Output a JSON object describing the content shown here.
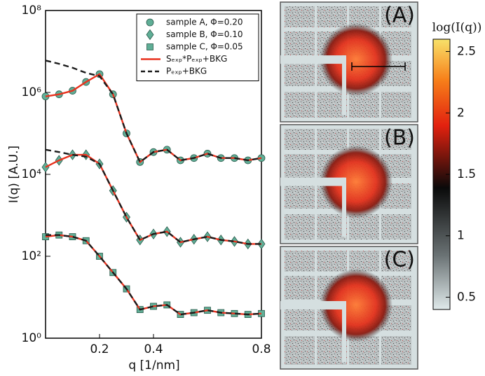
{
  "chart_data": {
    "type": "line",
    "xlabel": "q [1/nm]",
    "ylabel": "I(q) [A.U.]",
    "xlim": [
      0,
      0.8
    ],
    "xticks": [
      0.2,
      0.4,
      0.8
    ],
    "ylim": [
      1,
      100000000
    ],
    "log_y": true,
    "yticks": [
      {
        "value": 1,
        "label": "10⁰"
      },
      {
        "value": 100,
        "label": "10²"
      },
      {
        "value": 10000,
        "label": "10⁴"
      },
      {
        "value": 1000000,
        "label": "10⁶"
      },
      {
        "value": 100000000,
        "label": "10⁸"
      }
    ],
    "legend": "upper right",
    "x": [
      0,
      0.05,
      0.1,
      0.15,
      0.2,
      0.25,
      0.3,
      0.35,
      0.4,
      0.45,
      0.5,
      0.55,
      0.6,
      0.65,
      0.7,
      0.75,
      0.8
    ],
    "series": [
      {
        "name": "sample A, Φ=0.20",
        "color": "#5fae96",
        "marker": "circle",
        "values": [
          800000,
          900000,
          1100000,
          1800000,
          2800000,
          900000,
          100000,
          20000,
          35000,
          40000,
          22000,
          25000,
          32000,
          25000,
          25000,
          22000,
          25000
        ]
      },
      {
        "name": "sample B, Φ=0.10",
        "color": "#5fae96",
        "marker": "diamond",
        "values": [
          15000,
          22000,
          30000,
          30000,
          18000,
          4000,
          900,
          250,
          350,
          400,
          220,
          260,
          300,
          250,
          230,
          200,
          200
        ]
      },
      {
        "name": "sample C, Φ=0.05",
        "color": "#5fae96",
        "marker": "square",
        "values": [
          300,
          330,
          300,
          240,
          100,
          40,
          16,
          5,
          6,
          6.5,
          3.8,
          4.2,
          4.8,
          4.2,
          4,
          3.8,
          4
        ]
      },
      {
        "name": "Sₑₓₚ*Pₑₓₚ+BKG",
        "color": "#e8321e",
        "style": "solid",
        "curves": [
          [
            800000,
            900000,
            1100000,
            1800000,
            2800000,
            900000,
            100000,
            20000,
            35000,
            40000,
            22000,
            25000,
            32000,
            25000,
            25000,
            22000,
            25000
          ],
          [
            15000,
            22000,
            30000,
            30000,
            18000,
            4000,
            900,
            250,
            350,
            400,
            220,
            260,
            300,
            250,
            230,
            200,
            200
          ],
          [
            300,
            330,
            300,
            240,
            100,
            40,
            16,
            5,
            6,
            6.5,
            3.8,
            4.2,
            4.8,
            4.2,
            4,
            3.8,
            4
          ]
        ]
      },
      {
        "name": "Pₑₓₚ+BKG",
        "color": "#1a1a1a",
        "style": "dashed",
        "curves": [
          [
            6000000,
            5000000,
            4000000,
            3000000,
            2500000,
            900000,
            100000,
            20000,
            35000,
            40000,
            22000,
            25000,
            32000,
            25000,
            25000,
            22000,
            25000
          ],
          [
            40000,
            35000,
            30000,
            27000,
            18000,
            4000,
            900,
            250,
            350,
            400,
            220,
            260,
            300,
            250,
            230,
            200,
            200
          ],
          [
            330,
            330,
            300,
            240,
            100,
            40,
            16,
            5,
            6,
            6.5,
            3.8,
            4.2,
            4.8,
            4.2,
            4,
            3.8,
            4
          ]
        ]
      }
    ]
  },
  "panels": [
    "(A)",
    "(B)",
    "(C)"
  ],
  "colorbar": {
    "label": "log(I(q))",
    "lim": [
      0.4,
      2.6
    ],
    "ticks": [
      0.5,
      1,
      1.5,
      2,
      2.5
    ]
  }
}
